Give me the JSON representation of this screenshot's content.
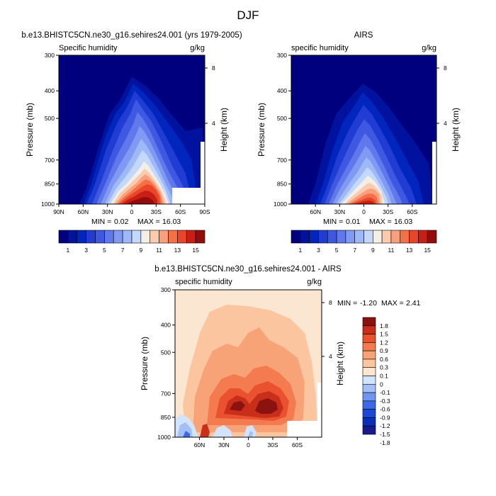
{
  "figure": {
    "title": "DJF"
  },
  "colors": {
    "abs": [
      "#00007f",
      "#00129e",
      "#0026bd",
      "#203cd2",
      "#3f58e1",
      "#6078ec",
      "#8099f3",
      "#9fb9f8",
      "#c3d8fc",
      "#f2efe6",
      "#fbcbb0",
      "#f8a07d",
      "#f47146",
      "#e9452a",
      "#c81f14",
      "#930b0b"
    ],
    "diff": [
      "#1a1a8c",
      "#0a2fb8",
      "#1a4ad5",
      "#3c6ae6",
      "#6f95f0",
      "#a2bff6",
      "#d3e3fb",
      "#fbe6d2",
      "#fbc5a0",
      "#f8a277",
      "#f47a4f",
      "#e9512f",
      "#c82e1a",
      "#8c1210"
    ]
  },
  "chart_data": [
    {
      "type": "contour",
      "title": "b.e13.BHISTC5CN.ne30_g16.sehires24.001 (yrs 1979-2005)",
      "variable": "Specific humidity",
      "units": "g/kg",
      "xlabel": "",
      "ylabel": "Pressure (mb)",
      "ylabel_right": "Height (km)",
      "x_ticks": [
        "90N",
        "60N",
        "30N",
        "0",
        "30S",
        "60S",
        "90S"
      ],
      "y_ticks": [
        300,
        400,
        500,
        700,
        850,
        1000
      ],
      "right_ticks": [
        "8",
        "4"
      ],
      "ylim": [
        1000,
        300
      ],
      "xlim": [
        "90N",
        "90S"
      ],
      "min_label": "MIN =",
      "min_value": "0.02",
      "max_label": "MAX =",
      "max_value": "16.03",
      "colorbar_labels": [
        "1",
        "3",
        "5",
        "7",
        "9",
        "11",
        "13",
        "15"
      ],
      "contour_levels": [
        1,
        2,
        3,
        4,
        5,
        6,
        7,
        8,
        9,
        10,
        11,
        12,
        13,
        14,
        15
      ]
    },
    {
      "type": "contour",
      "title": "AIRS",
      "variable": "specific humidity",
      "units": "g/kg",
      "xlabel": "",
      "ylabel": "Pressure (mb)",
      "ylabel_right": "Height (km)",
      "x_ticks": [
        "60N",
        "30N",
        "0",
        "30S",
        "60S"
      ],
      "y_ticks": [
        300,
        400,
        500,
        700,
        850,
        1000
      ],
      "right_ticks": [
        "8",
        "4"
      ],
      "ylim": [
        1000,
        300
      ],
      "min_label": "MIN =",
      "min_value": "0.01",
      "max_label": "MAX =",
      "max_value": "16.03",
      "colorbar_labels": [
        "1",
        "3",
        "5",
        "7",
        "9",
        "11",
        "13",
        "15"
      ],
      "contour_levels": [
        1,
        2,
        3,
        4,
        5,
        6,
        7,
        8,
        9,
        10,
        11,
        12,
        13,
        14,
        15
      ]
    },
    {
      "type": "contour",
      "title": "b.e13.BHISTC5CN.ne30_g16.sehires24.001 - AIRS",
      "variable": "specific humidity",
      "units": "g/kg",
      "xlabel": "",
      "ylabel": "Pressure (mb)",
      "ylabel_right": "Height (km)",
      "x_ticks": [
        "60N",
        "30N",
        "0",
        "30S",
        "60S"
      ],
      "y_ticks": [
        300,
        400,
        500,
        700,
        850,
        1000
      ],
      "right_ticks": [
        "8",
        "4"
      ],
      "ylim": [
        1000,
        300
      ],
      "min_label": "MIN =",
      "min_value": "-1.20",
      "max_label": "MAX =",
      "max_value": "2.41",
      "colorbar_labels": [
        "1.8",
        "1.5",
        "1.2",
        "0.9",
        "0.6",
        "0.3",
        "0.1",
        "0",
        "-0.1",
        "-0.3",
        "-0.6",
        "-0.9",
        "-1.2",
        "-1.5",
        "-1.8"
      ],
      "contour_levels": [
        -1.8,
        -1.5,
        -1.2,
        -0.9,
        -0.6,
        -0.3,
        -0.1,
        0,
        0.1,
        0.3,
        0.6,
        0.9,
        1.2,
        1.5,
        1.8
      ]
    }
  ]
}
